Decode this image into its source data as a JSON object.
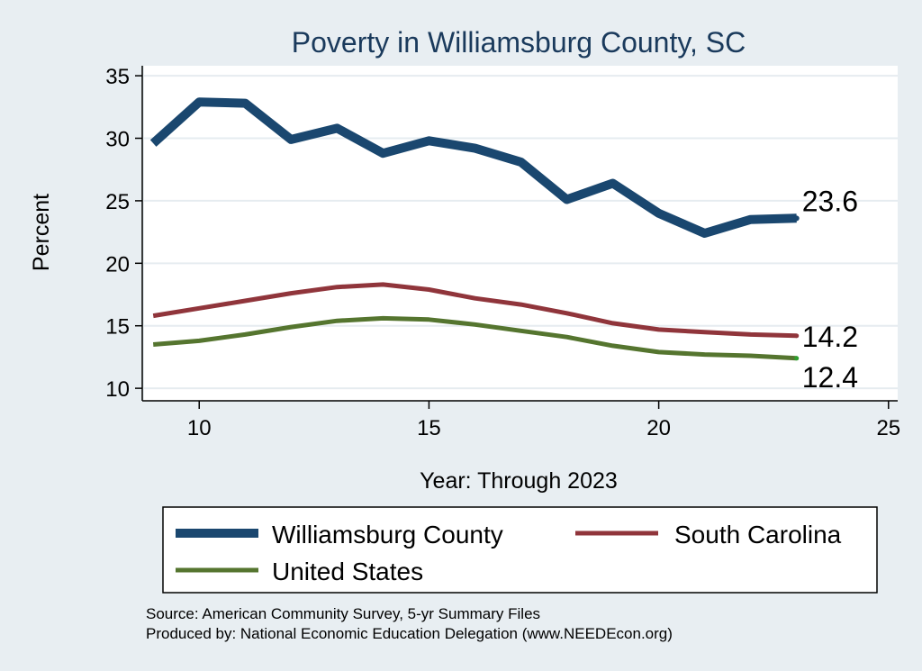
{
  "chart_data": {
    "type": "line",
    "title": "Poverty in Williamsburg County, SC",
    "xlabel": "Year: Through 2023",
    "ylabel": "Percent",
    "xlim": [
      8.8,
      25.2
    ],
    "ylim": [
      9.0,
      35.8
    ],
    "xticks": [
      10,
      15,
      20,
      25
    ],
    "yticks": [
      10,
      15,
      20,
      25,
      30,
      35
    ],
    "grid": true,
    "legend_position": "bottom",
    "series": [
      {
        "name": "Williamsburg County",
        "color": "#1a476f",
        "x": [
          9,
          10,
          11,
          12,
          13,
          14,
          15,
          16,
          17,
          18,
          19,
          20,
          21,
          22,
          23
        ],
        "values": [
          29.6,
          32.9,
          32.8,
          29.9,
          30.8,
          28.8,
          29.8,
          29.2,
          28.1,
          25.1,
          26.4,
          24.0,
          22.4,
          23.5,
          23.6
        ],
        "end_label": "23.6"
      },
      {
        "name": "South Carolina",
        "color": "#90353b",
        "x": [
          9,
          10,
          11,
          12,
          13,
          14,
          15,
          16,
          17,
          18,
          19,
          20,
          21,
          22,
          23
        ],
        "values": [
          15.8,
          16.4,
          17.0,
          17.6,
          18.1,
          18.3,
          17.9,
          17.2,
          16.7,
          16.0,
          15.2,
          14.7,
          14.5,
          14.3,
          14.2
        ],
        "end_label": "14.2"
      },
      {
        "name": "United States",
        "color": "#55752f",
        "x": [
          9,
          10,
          11,
          12,
          13,
          14,
          15,
          16,
          17,
          18,
          19,
          20,
          21,
          22,
          23
        ],
        "values": [
          13.5,
          13.8,
          14.3,
          14.9,
          15.4,
          15.6,
          15.5,
          15.1,
          14.6,
          14.1,
          13.4,
          12.9,
          12.7,
          12.6,
          12.4
        ],
        "end_label": "12.4"
      }
    ]
  },
  "source": {
    "line1": "Source: American Community Survey, 5-yr Summary Files",
    "line2": "Produced by: National Economic Education Delegation (www.NEEDEcon.org)"
  }
}
